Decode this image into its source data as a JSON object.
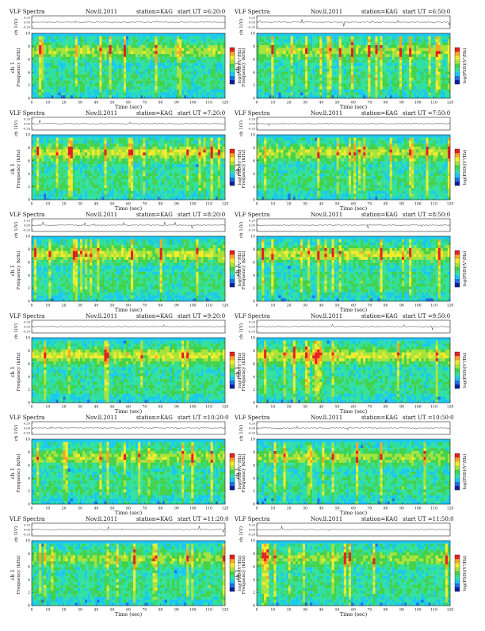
{
  "page": {
    "background": "#ffffff"
  },
  "colormap": {
    "colors": [
      "#0a1f9e",
      "#1f6fe0",
      "#19c8ef",
      "#30e0a0",
      "#42d24a",
      "#a6e33a",
      "#f2ec2c",
      "#f5a623",
      "#e51f1f"
    ],
    "label": "log(PSD)(V²/Hz)"
  },
  "chart_data": [
    {
      "type": "heatmap",
      "title": "VLF Spectra",
      "date": "Nov.ll.2011",
      "station": "station=KAG",
      "start_ut": "start  UT  =6:20:0",
      "top_ylabel": "ch 1(V)",
      "top_ticks": [
        "0.20",
        "0.00",
        "-0.20"
      ],
      "ylabel": "Frequency  (kHz)",
      "ylabel_prefix": "ch 1",
      "xlabel": "Time  (sec)",
      "xlim": [
        0,
        120
      ],
      "ylim": [
        0,
        10
      ],
      "xticks": [
        "0",
        "10",
        "20",
        "30",
        "40",
        "50",
        "60",
        "70",
        "80",
        "90",
        "100",
        "110",
        "120"
      ],
      "yticks": [
        "0",
        "2",
        "4",
        "6",
        "8",
        "10"
      ],
      "intensity": 0.55,
      "seed": 11
    },
    {
      "type": "heatmap",
      "title": "VLF Spectra",
      "date": "Nov.ll.2011",
      "station": "station=KAG",
      "start_ut": "start  UT  =6:50:0",
      "top_ylabel": "ch 1(V)",
      "top_ticks": [
        "0.20",
        "0.00",
        "-0.20"
      ],
      "ylabel": "Frequency  (kHz)",
      "ylabel_prefix": "ch 1",
      "xlabel": "Time  (sec)",
      "xlim": [
        0,
        120
      ],
      "ylim": [
        0,
        10
      ],
      "xticks": [
        "0",
        "10",
        "20",
        "30",
        "40",
        "50",
        "60",
        "70",
        "80",
        "90",
        "100",
        "110",
        "120"
      ],
      "yticks": [
        "0",
        "2",
        "4",
        "6",
        "8",
        "10"
      ],
      "intensity": 0.5,
      "seed": 23
    },
    {
      "type": "heatmap",
      "title": "VLF Spectra",
      "date": "Nov.ll.2011",
      "station": "station=KAG",
      "start_ut": "start  UT  =7:20:0",
      "top_ylabel": "ch 1(V)",
      "top_ticks": [
        "0.20",
        "0.00",
        "-0.20"
      ],
      "ylabel": "Frequency  (kHz)",
      "ylabel_prefix": "ch 1",
      "xlabel": "Time  (sec)",
      "xlim": [
        0,
        120
      ],
      "ylim": [
        0,
        10
      ],
      "xticks": [
        "0",
        "10",
        "20",
        "30",
        "40",
        "50",
        "60",
        "70",
        "80",
        "90",
        "100",
        "110",
        "120"
      ],
      "yticks": [
        "0",
        "2",
        "4",
        "6",
        "8",
        "10"
      ],
      "intensity": 0.65,
      "seed": 37
    },
    {
      "type": "heatmap",
      "title": "VLF Spectra",
      "date": "Nov.ll.2011",
      "station": "station=KAG",
      "start_ut": "start  UT  =7:50:0",
      "top_ylabel": "ch 1(V)",
      "top_ticks": [
        "0.20",
        "0.00",
        "-0.20"
      ],
      "ylabel": "Frequency  (kHz)",
      "ylabel_prefix": "ch 1",
      "xlabel": "Time  (sec)",
      "xlim": [
        0,
        120
      ],
      "ylim": [
        0,
        10
      ],
      "xticks": [
        "0",
        "10",
        "20",
        "30",
        "40",
        "50",
        "60",
        "70",
        "80",
        "90",
        "100",
        "110",
        "120"
      ],
      "yticks": [
        "0",
        "2",
        "4",
        "6",
        "8",
        "10"
      ],
      "intensity": 0.6,
      "seed": 41
    },
    {
      "type": "heatmap",
      "title": "VLF Spectra",
      "date": "Nov.ll.2011",
      "station": "station=KAG",
      "start_ut": "start  UT  =8:20:0",
      "top_ylabel": "ch 1(V)",
      "top_ticks": [
        "0.20",
        "0.00",
        "-0.20"
      ],
      "ylabel": "Frequency  (kHz)",
      "ylabel_prefix": "ch 1",
      "xlabel": "Time  (sec)",
      "xlim": [
        0,
        120
      ],
      "ylim": [
        0,
        10
      ],
      "xticks": [
        "0",
        "10",
        "20",
        "30",
        "40",
        "50",
        "60",
        "70",
        "80",
        "90",
        "100",
        "110",
        "120"
      ],
      "yticks": [
        "0",
        "2",
        "4",
        "6",
        "8",
        "10"
      ],
      "intensity": 0.7,
      "seed": 53
    },
    {
      "type": "heatmap",
      "title": "VLF Spectra",
      "date": "Nov.ll.2011",
      "station": "station=KAG",
      "start_ut": "start  UT  =8:50:0",
      "top_ylabel": "ch 1(V)",
      "top_ticks": [
        "0.20",
        "0.00",
        "-0.20"
      ],
      "ylabel": "Frequency  (kHz)",
      "ylabel_prefix": "ch 1",
      "xlabel": "Time  (sec)",
      "xlim": [
        0,
        120
      ],
      "ylim": [
        0,
        10
      ],
      "xticks": [
        "0",
        "10",
        "20",
        "30",
        "40",
        "50",
        "60",
        "70",
        "80",
        "90",
        "100",
        "110",
        "120"
      ],
      "yticks": [
        "0",
        "2",
        "4",
        "6",
        "8",
        "10"
      ],
      "intensity": 0.7,
      "seed": 67
    },
    {
      "type": "heatmap",
      "title": "VLF Spectra",
      "date": "Nov.ll.2011",
      "station": "station=KAG",
      "start_ut": "start  UT  =9:20:0",
      "top_ylabel": "ch 1(V)",
      "top_ticks": [
        "0.20",
        "0.00",
        "-0.20"
      ],
      "ylabel": "Frequency  (kHz)",
      "ylabel_prefix": "ch 1",
      "xlabel": "Time  (sec)",
      "xlim": [
        0,
        120
      ],
      "ylim": [
        0,
        10
      ],
      "xticks": [
        "0",
        "10",
        "20",
        "30",
        "40",
        "50",
        "60",
        "70",
        "80",
        "90",
        "100",
        "110",
        "120"
      ],
      "yticks": [
        "0",
        "2",
        "4",
        "6",
        "8",
        "10"
      ],
      "intensity": 0.75,
      "seed": 71
    },
    {
      "type": "heatmap",
      "title": "VLF Spectra",
      "date": "Nov.ll.2011",
      "station": "station=KAG",
      "start_ut": "start  UT  =9:50:0",
      "top_ylabel": "ch 1(V)",
      "top_ticks": [
        "0.20",
        "0.00",
        "-0.20"
      ],
      "ylabel": "Frequency  (kHz)",
      "ylabel_prefix": "ch 1",
      "xlabel": "Time  (sec)",
      "xlim": [
        0,
        120
      ],
      "ylim": [
        0,
        10
      ],
      "xticks": [
        "0",
        "10",
        "20",
        "30",
        "40",
        "50",
        "60",
        "70",
        "80",
        "90",
        "100",
        "110",
        "120"
      ],
      "yticks": [
        "0",
        "2",
        "4",
        "6",
        "8",
        "10"
      ],
      "intensity": 0.72,
      "seed": 83
    },
    {
      "type": "heatmap",
      "title": "VLF Spectra",
      "date": "Nov.ll.2011",
      "station": "station=KAG",
      "start_ut": "start  UT  =10:20:0",
      "top_ylabel": "ch 1(V)",
      "top_ticks": [
        "0.20",
        "0.00",
        "-0.20"
      ],
      "ylabel": "Frequency  (kHz)",
      "ylabel_prefix": "ch 1",
      "xlabel": "Time  (sec)",
      "xlim": [
        0,
        120
      ],
      "ylim": [
        0,
        10
      ],
      "xticks": [
        "0",
        "10",
        "20",
        "30",
        "40",
        "50",
        "60",
        "70",
        "80",
        "90",
        "100",
        "110",
        "120"
      ],
      "yticks": [
        "0",
        "2",
        "4",
        "6",
        "8",
        "10"
      ],
      "intensity": 0.55,
      "seed": 97
    },
    {
      "type": "heatmap",
      "title": "VLF Spectra",
      "date": "Nov.ll.2011",
      "station": "station=KAG",
      "start_ut": "start  UT  =10:50:0",
      "top_ylabel": "ch 1(V)",
      "top_ticks": [
        "0.20",
        "0.00",
        "-0.20"
      ],
      "ylabel": "Frequency  (kHz)",
      "ylabel_prefix": "ch 1",
      "xlabel": "Time  (sec)",
      "xlim": [
        0,
        120
      ],
      "ylim": [
        0,
        10
      ],
      "xticks": [
        "0",
        "10",
        "20",
        "30",
        "40",
        "50",
        "60",
        "70",
        "80",
        "90",
        "100",
        "110",
        "120"
      ],
      "yticks": [
        "0",
        "2",
        "4",
        "6",
        "8",
        "10"
      ],
      "intensity": 0.5,
      "seed": 101
    },
    {
      "type": "heatmap",
      "title": "VLF Spectra",
      "date": "Nov.ll.2011",
      "station": "station=KAG",
      "start_ut": "start  UT  =11:20:0",
      "top_ylabel": "ch 1(V)",
      "top_ticks": [
        "0.20",
        "0.00",
        "-0.20"
      ],
      "ylabel": "Frequency  (kHz)",
      "ylabel_prefix": "ch 1",
      "xlabel": "Time  (sec)",
      "xlim": [
        0,
        120
      ],
      "ylim": [
        0,
        10
      ],
      "xticks": [
        "0",
        "10",
        "20",
        "30",
        "40",
        "50",
        "60",
        "70",
        "80",
        "90",
        "100",
        "110",
        "120"
      ],
      "yticks": [
        "0",
        "2",
        "4",
        "6",
        "8",
        "10"
      ],
      "intensity": 0.45,
      "seed": 113
    },
    {
      "type": "heatmap",
      "title": "VLF Spectra",
      "date": "Nov.ll.2011",
      "station": "station=KAG",
      "start_ut": "start  UT  =11:50:0",
      "top_ylabel": "ch 1(V)",
      "top_ticks": [
        "0.20",
        "0.00",
        "-0.20"
      ],
      "ylabel": "Frequency  (kHz)",
      "ylabel_prefix": "ch 1",
      "xlabel": "Time  (sec)",
      "xlim": [
        0,
        120
      ],
      "ylim": [
        0,
        10
      ],
      "xticks": [
        "0",
        "10",
        "20",
        "30",
        "40",
        "50",
        "60",
        "70",
        "80",
        "90",
        "100",
        "110",
        "120"
      ],
      "yticks": [
        "0",
        "2",
        "4",
        "6",
        "8",
        "10"
      ],
      "intensity": 0.45,
      "seed": 127
    }
  ]
}
